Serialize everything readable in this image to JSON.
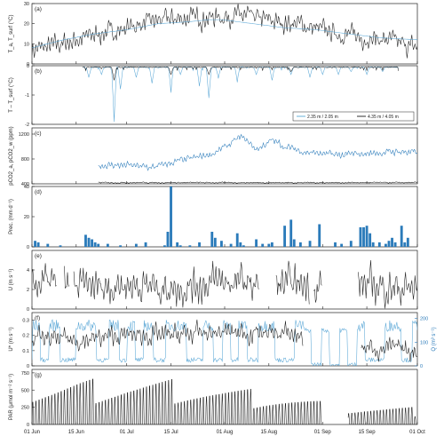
{
  "colors": {
    "black": "#1a1a1a",
    "blue": "#2b7bba",
    "light_blue": "#5aa7d6",
    "axis": "#222222"
  },
  "x_axis": {
    "ticks": [
      "01 Jun",
      "15 Jun",
      "01 Jul",
      "15 Jul",
      "01 Aug",
      "15 Aug",
      "01 Sep",
      "15 Sep",
      "01 Oct"
    ]
  },
  "chart_data": [
    {
      "id": "a",
      "type": "line",
      "panel_label": "(a)",
      "ylabel": "T_a, T_surf (°C)",
      "ylim": [
        0,
        30
      ],
      "yticks": [
        "0",
        "10",
        "20",
        "30"
      ],
      "series": [
        {
          "name": "",
          "color": "#1a1a1a",
          "style": "noisy",
          "points": [
            [
              0,
              7
            ],
            [
              7,
              9
            ],
            [
              14,
              12
            ],
            [
              21,
              15
            ],
            [
              28,
              17
            ],
            [
              35,
              20
            ],
            [
              42,
              22
            ],
            [
              49,
              23
            ],
            [
              56,
              23
            ],
            [
              63,
              24
            ],
            [
              70,
              23
            ],
            [
              77,
              21
            ],
            [
              84,
              20
            ],
            [
              91,
              17
            ],
            [
              98,
              15
            ],
            [
              105,
              13
            ],
            [
              112,
              12
            ],
            [
              119,
              9
            ],
            [
              122,
              8
            ]
          ],
          "amplitude": 6
        },
        {
          "name": "",
          "color": "#5aa7d6",
          "style": "smooth",
          "points": [
            [
              0,
              8
            ],
            [
              10,
              12
            ],
            [
              20,
              15
            ],
            [
              30,
              17
            ],
            [
              40,
              20
            ],
            [
              50,
              21
            ],
            [
              56,
              22
            ],
            [
              60,
              22
            ],
            [
              65,
              21
            ],
            [
              70,
              20
            ],
            [
              80,
              18
            ],
            [
              90,
              17
            ],
            [
              100,
              15
            ],
            [
              110,
              13
            ],
            [
              122,
              12
            ]
          ]
        }
      ]
    },
    {
      "id": "b",
      "type": "line",
      "panel_label": "(b)",
      "ylabel": "T – T_surf (°C)",
      "ylim": [
        -2,
        0
      ],
      "yticks": [
        "-2",
        "-1",
        "0"
      ],
      "legend": {
        "position": "bottom-right",
        "entries": [
          "2.35 m / 2.05 m",
          "4.35 m / 4.05 m"
        ]
      },
      "series": [
        {
          "name": "2.35 m / 2.05 m",
          "color": "#5aa7d6",
          "style": "spikes-down",
          "range": [
            16,
            116
          ],
          "baseline": -0.05,
          "spikes": [
            [
              18,
              -0.4
            ],
            [
              22,
              -0.3
            ],
            [
              26,
              -1.8
            ],
            [
              28,
              -0.8
            ],
            [
              33,
              -0.4
            ],
            [
              38,
              -0.6
            ],
            [
              44,
              -0.8
            ],
            [
              47,
              -0.3
            ],
            [
              53,
              -0.7
            ],
            [
              56,
              -1.1
            ],
            [
              59,
              -0.4
            ],
            [
              65,
              -0.5
            ],
            [
              71,
              -0.3
            ],
            [
              76,
              -0.5
            ],
            [
              82,
              -0.3
            ],
            [
              88,
              -0.4
            ],
            [
              92,
              -0.3
            ],
            [
              97,
              -0.3
            ],
            [
              101,
              -0.2
            ],
            [
              106,
              -0.3
            ],
            [
              111,
              -0.2
            ]
          ]
        },
        {
          "name": "4.35 m / 4.05 m",
          "color": "#1a1a1a",
          "style": "spikes-down",
          "range": [
            16,
            116
          ],
          "baseline": -0.05,
          "spikes": [
            [
              26,
              -0.5
            ],
            [
              44,
              -0.3
            ],
            [
              56,
              -0.3
            ],
            [
              82,
              -0.2
            ]
          ]
        }
      ]
    },
    {
      "id": "c",
      "type": "line",
      "panel_label": "(c)",
      "ylabel": "pCO2_a, pCO2_w (ppm)",
      "ylim": [
        400,
        1300
      ],
      "yticks": [
        "400",
        "800",
        "1200"
      ],
      "series": [
        {
          "name": "",
          "color": "#2b7bba",
          "style": "noisy",
          "range": [
            21,
            122
          ],
          "amplitude": 70,
          "points": [
            [
              21,
              700
            ],
            [
              30,
              700
            ],
            [
              38,
              660
            ],
            [
              45,
              750
            ],
            [
              52,
              820
            ],
            [
              58,
              900
            ],
            [
              63,
              1050
            ],
            [
              66,
              1150
            ],
            [
              68,
              1100
            ],
            [
              71,
              950
            ],
            [
              76,
              1100
            ],
            [
              80,
              1000
            ],
            [
              86,
              920
            ],
            [
              92,
              880
            ],
            [
              98,
              860
            ],
            [
              104,
              880
            ],
            [
              110,
              900
            ],
            [
              116,
              920
            ],
            [
              122,
              900
            ]
          ]
        },
        {
          "name": "",
          "color": "#1a1a1a",
          "style": "noisy",
          "range": [
            21,
            122
          ],
          "amplitude": 12,
          "points": [
            [
              21,
              420
            ],
            [
              60,
              420
            ],
            [
              90,
              420
            ],
            [
              122,
              420
            ]
          ]
        }
      ]
    },
    {
      "id": "d",
      "type": "bar",
      "panel_label": "(d)",
      "ylabel": "Prec. (mm d⁻¹)",
      "ylim": [
        0,
        40
      ],
      "yticks": [
        "0",
        "20",
        "40"
      ],
      "color": "#2b7bba",
      "x": [
        1,
        2,
        5,
        9,
        17,
        18,
        19,
        20,
        21,
        24,
        28,
        33,
        36,
        42,
        43,
        44,
        46,
        47,
        50,
        53,
        57,
        58,
        60,
        63,
        65,
        66,
        67,
        71,
        73,
        75,
        76,
        80,
        82,
        83,
        85,
        88,
        91,
        96,
        98,
        101,
        104,
        105,
        106,
        107,
        108,
        110,
        112,
        113,
        114,
        115,
        117,
        118,
        119
      ],
      "values": [
        4,
        3,
        2,
        1,
        8,
        6,
        5,
        3,
        2,
        2,
        1,
        2,
        3,
        1,
        10,
        41,
        3,
        1,
        1,
        3,
        10,
        6,
        4,
        2,
        9,
        3,
        1,
        5,
        2,
        2,
        3,
        14,
        18,
        5,
        3,
        4,
        15,
        3,
        2,
        4,
        13,
        13,
        14,
        9,
        3,
        3,
        2,
        4,
        6,
        3,
        14,
        3,
        6
      ]
    },
    {
      "id": "e",
      "type": "line",
      "panel_label": "(e)",
      "ylabel": "U (m s⁻¹)",
      "ylim": [
        0,
        6
      ],
      "yticks": [
        "0",
        "2",
        "4"
      ],
      "series": [
        {
          "name": "",
          "color": "#1a1a1a",
          "style": "noisy",
          "amplitude": 2.2,
          "gaps": [
            [
              8,
              10
            ],
            [
              12,
              13
            ],
            [
              72,
              77
            ],
            [
              88,
              89
            ],
            [
              92,
              103
            ]
          ],
          "points": [
            [
              0,
              2.8
            ],
            [
              15,
              2.2
            ],
            [
              30,
              2.5
            ],
            [
              45,
              2.2
            ],
            [
              60,
              2.8
            ],
            [
              75,
              2.4
            ],
            [
              90,
              2.6
            ],
            [
              105,
              2.5
            ],
            [
              122,
              2.0
            ]
          ]
        }
      ]
    },
    {
      "id": "f",
      "type": "line",
      "panel_label": "(f)",
      "ylabel": "U* (m s⁻¹)",
      "y2label": "Q (m³ s⁻¹)",
      "ylim": [
        0,
        0.35
      ],
      "yticks": [
        "0",
        "0.1",
        "0.2",
        "0.3"
      ],
      "y2lim": [
        0,
        225
      ],
      "y2ticks": [
        "0",
        "100",
        "200"
      ],
      "series": [
        {
          "name": "",
          "color": "#5aa7d6",
          "style": "pulses",
          "axis": "right",
          "points": [
            [
              0,
              120
            ],
            [
              122,
              120
            ]
          ],
          "amplitude": 120
        },
        {
          "name": "",
          "color": "#1a1a1a",
          "style": "noisy",
          "axis": "left",
          "amplitude": 0.08,
          "gaps": [
            [
              86,
              104
            ]
          ],
          "points": [
            [
              0,
              0.18
            ],
            [
              15,
              0.17
            ],
            [
              30,
              0.2
            ],
            [
              45,
              0.2
            ],
            [
              60,
              0.22
            ],
            [
              75,
              0.22
            ],
            [
              85,
              0.2
            ],
            [
              104,
              0.12
            ],
            [
              115,
              0.11
            ],
            [
              122,
              0.1
            ]
          ]
        }
      ]
    },
    {
      "id": "g",
      "type": "line",
      "panel_label": "(g)",
      "ylabel": "PAR (μmol m⁻² s⁻¹)",
      "ylim": [
        0,
        800
      ],
      "yticks": [
        "0",
        "250",
        "500",
        "750"
      ],
      "series": [
        {
          "name": "",
          "color": "#1a1a1a",
          "style": "diurnal",
          "gaps": [
            [
              92,
              100
            ]
          ],
          "range": [
            0,
            122
          ],
          "peaks": [
            [
              0,
              600
            ],
            [
              15,
              700
            ],
            [
              30,
              720
            ],
            [
              45,
              700
            ],
            [
              60,
              600
            ],
            [
              75,
              520
            ],
            [
              90,
              400
            ],
            [
              100,
              300
            ],
            [
              110,
              280
            ],
            [
              122,
              260
            ]
          ]
        }
      ]
    }
  ]
}
